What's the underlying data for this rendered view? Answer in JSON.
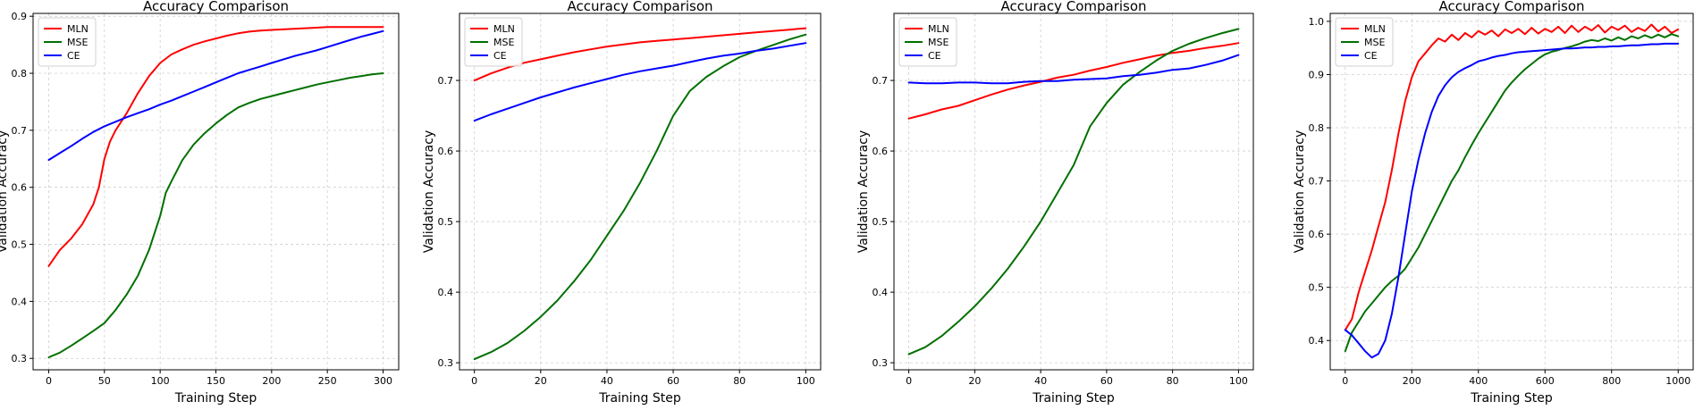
{
  "chart_data": [
    {
      "type": "line",
      "title": "Accuracy Comparison",
      "xlabel": "Training Step",
      "ylabel": "Validation Accuracy",
      "xlim": [
        -14,
        314
      ],
      "ylim": [
        0.28,
        0.905
      ],
      "xticks": [
        0,
        50,
        100,
        150,
        200,
        250,
        300
      ],
      "yticks": [
        0.3,
        0.4,
        0.5,
        0.6,
        0.7,
        0.8,
        0.9
      ],
      "xtick_labels": [
        "0",
        "50",
        "100",
        "150",
        "200",
        "250",
        "300"
      ],
      "ytick_labels": [
        "0.3",
        "0.4",
        "0.5",
        "0.6",
        "0.7",
        "0.8",
        "0.9"
      ],
      "grid": true,
      "legend_position": "top-left",
      "series": [
        {
          "name": "MLN",
          "color": "#ff0000",
          "x": [
            0,
            10,
            20,
            30,
            40,
            45,
            50,
            55,
            60,
            70,
            80,
            90,
            100,
            110,
            120,
            130,
            140,
            150,
            160,
            170,
            180,
            190,
            200,
            210,
            220,
            230,
            240,
            250,
            260,
            270,
            280,
            290,
            300
          ],
          "y": [
            0.462,
            0.49,
            0.51,
            0.535,
            0.57,
            0.6,
            0.65,
            0.68,
            0.7,
            0.73,
            0.765,
            0.795,
            0.818,
            0.833,
            0.842,
            0.85,
            0.856,
            0.861,
            0.866,
            0.87,
            0.873,
            0.875,
            0.876,
            0.877,
            0.878,
            0.879,
            0.88,
            0.881,
            0.881,
            0.881,
            0.881,
            0.881,
            0.881
          ]
        },
        {
          "name": "MSE",
          "color": "#007000",
          "x": [
            0,
            10,
            20,
            30,
            40,
            50,
            60,
            70,
            80,
            90,
            100,
            105,
            110,
            120,
            130,
            140,
            150,
            160,
            170,
            180,
            190,
            200,
            210,
            220,
            230,
            240,
            250,
            260,
            270,
            280,
            290,
            300
          ],
          "y": [
            0.302,
            0.31,
            0.322,
            0.335,
            0.348,
            0.362,
            0.385,
            0.412,
            0.445,
            0.49,
            0.55,
            0.59,
            0.61,
            0.648,
            0.675,
            0.695,
            0.712,
            0.727,
            0.74,
            0.748,
            0.755,
            0.76,
            0.765,
            0.77,
            0.775,
            0.78,
            0.784,
            0.788,
            0.792,
            0.795,
            0.798,
            0.8
          ]
        },
        {
          "name": "CE",
          "color": "#0000ff",
          "x": [
            0,
            10,
            20,
            30,
            40,
            50,
            60,
            70,
            80,
            90,
            100,
            110,
            120,
            130,
            140,
            150,
            160,
            170,
            180,
            190,
            200,
            210,
            220,
            230,
            240,
            250,
            260,
            270,
            280,
            290,
            300
          ],
          "y": [
            0.648,
            0.66,
            0.672,
            0.685,
            0.697,
            0.707,
            0.715,
            0.723,
            0.73,
            0.737,
            0.745,
            0.752,
            0.76,
            0.768,
            0.776,
            0.784,
            0.792,
            0.8,
            0.806,
            0.812,
            0.818,
            0.824,
            0.83,
            0.835,
            0.84,
            0.846,
            0.852,
            0.858,
            0.864,
            0.869,
            0.874
          ]
        }
      ]
    },
    {
      "type": "line",
      "title": "Accuracy Comparison",
      "xlabel": "Training Step",
      "ylabel": "Validation Accuracy",
      "xlim": [
        -4.5,
        104.5
      ],
      "ylim": [
        0.29,
        0.795
      ],
      "xticks": [
        0,
        20,
        40,
        60,
        80,
        100
      ],
      "yticks": [
        0.3,
        0.4,
        0.5,
        0.6,
        0.7
      ],
      "xtick_labels": [
        "0",
        "20",
        "40",
        "60",
        "80",
        "100"
      ],
      "ytick_labels": [
        "0.3",
        "0.4",
        "0.5",
        "0.6",
        "0.7"
      ],
      "grid": true,
      "legend_position": "top-left",
      "series": [
        {
          "name": "MLN",
          "color": "#ff0000",
          "x": [
            0,
            5,
            10,
            15,
            20,
            25,
            30,
            35,
            40,
            45,
            50,
            55,
            60,
            65,
            70,
            75,
            80,
            85,
            90,
            95,
            100
          ],
          "y": [
            0.7,
            0.71,
            0.718,
            0.725,
            0.73,
            0.735,
            0.74,
            0.744,
            0.748,
            0.751,
            0.754,
            0.756,
            0.758,
            0.76,
            0.762,
            0.764,
            0.766,
            0.768,
            0.77,
            0.772,
            0.774
          ]
        },
        {
          "name": "MSE",
          "color": "#007000",
          "x": [
            0,
            5,
            10,
            15,
            20,
            25,
            30,
            35,
            40,
            45,
            50,
            55,
            60,
            65,
            70,
            75,
            80,
            85,
            90,
            95,
            100
          ],
          "y": [
            0.305,
            0.315,
            0.328,
            0.345,
            0.365,
            0.388,
            0.415,
            0.445,
            0.48,
            0.515,
            0.555,
            0.6,
            0.65,
            0.685,
            0.705,
            0.72,
            0.733,
            0.742,
            0.75,
            0.758,
            0.765
          ]
        },
        {
          "name": "CE",
          "color": "#0000ff",
          "x": [
            0,
            5,
            10,
            15,
            20,
            25,
            30,
            35,
            40,
            45,
            50,
            55,
            60,
            65,
            70,
            75,
            80,
            85,
            90,
            95,
            100
          ],
          "y": [
            0.643,
            0.652,
            0.66,
            0.668,
            0.676,
            0.683,
            0.69,
            0.696,
            0.702,
            0.708,
            0.713,
            0.717,
            0.721,
            0.726,
            0.731,
            0.735,
            0.738,
            0.742,
            0.745,
            0.749,
            0.753
          ]
        }
      ]
    },
    {
      "type": "line",
      "title": "Accuracy Comparison",
      "xlabel": "Training Step",
      "ylabel": "Validation Accuracy",
      "xlim": [
        -4.5,
        104.5
      ],
      "ylim": [
        0.29,
        0.795
      ],
      "xticks": [
        0,
        20,
        40,
        60,
        80,
        100
      ],
      "yticks": [
        0.3,
        0.4,
        0.5,
        0.6,
        0.7
      ],
      "xtick_labels": [
        "0",
        "20",
        "40",
        "60",
        "80",
        "100"
      ],
      "ytick_labels": [
        "0.3",
        "0.4",
        "0.5",
        "0.6",
        "0.7"
      ],
      "grid": true,
      "legend_position": "top-left",
      "series": [
        {
          "name": "MLN",
          "color": "#ff0000",
          "x": [
            0,
            5,
            10,
            15,
            20,
            25,
            30,
            35,
            40,
            45,
            50,
            55,
            60,
            65,
            70,
            75,
            80,
            85,
            90,
            95,
            100
          ],
          "y": [
            0.646,
            0.652,
            0.659,
            0.664,
            0.672,
            0.68,
            0.687,
            0.693,
            0.698,
            0.704,
            0.708,
            0.714,
            0.719,
            0.725,
            0.73,
            0.735,
            0.739,
            0.742,
            0.746,
            0.749,
            0.753
          ]
        },
        {
          "name": "MSE",
          "color": "#007000",
          "x": [
            0,
            5,
            10,
            15,
            20,
            25,
            30,
            35,
            40,
            45,
            50,
            55,
            60,
            65,
            70,
            75,
            80,
            85,
            90,
            95,
            100
          ],
          "y": [
            0.312,
            0.322,
            0.338,
            0.358,
            0.38,
            0.405,
            0.433,
            0.465,
            0.5,
            0.54,
            0.58,
            0.635,
            0.668,
            0.694,
            0.712,
            0.728,
            0.742,
            0.752,
            0.76,
            0.767,
            0.773
          ]
        },
        {
          "name": "CE",
          "color": "#0000ff",
          "x": [
            0,
            5,
            10,
            15,
            20,
            25,
            30,
            35,
            40,
            45,
            50,
            55,
            60,
            65,
            70,
            75,
            80,
            85,
            90,
            95,
            100
          ],
          "y": [
            0.697,
            0.696,
            0.696,
            0.697,
            0.697,
            0.696,
            0.696,
            0.698,
            0.699,
            0.699,
            0.701,
            0.702,
            0.703,
            0.706,
            0.708,
            0.711,
            0.715,
            0.717,
            0.722,
            0.728,
            0.736
          ]
        }
      ]
    },
    {
      "type": "line",
      "title": "Accuracy Comparison",
      "xlabel": "Training Step",
      "ylabel": "Validation Accuracy",
      "xlim": [
        -45,
        1045
      ],
      "ylim": [
        0.345,
        1.015
      ],
      "xticks": [
        0,
        200,
        400,
        600,
        800,
        1000
      ],
      "yticks": [
        0.4,
        0.5,
        0.6,
        0.7,
        0.8,
        0.9,
        1.0
      ],
      "xtick_labels": [
        "0",
        "200",
        "400",
        "600",
        "800",
        "1000"
      ],
      "ytick_labels": [
        "0.4",
        "0.5",
        "0.6",
        "0.7",
        "0.8",
        "0.9",
        "1.0"
      ],
      "grid": true,
      "legend_position": "top-left",
      "series": [
        {
          "name": "MLN",
          "color": "#ff0000",
          "x": [
            0,
            20,
            40,
            60,
            80,
            100,
            120,
            140,
            160,
            180,
            200,
            220,
            240,
            260,
            280,
            300,
            320,
            340,
            360,
            380,
            400,
            420,
            440,
            460,
            480,
            500,
            520,
            540,
            560,
            580,
            600,
            620,
            640,
            660,
            680,
            700,
            720,
            740,
            760,
            780,
            800,
            820,
            840,
            860,
            880,
            900,
            920,
            940,
            960,
            980,
            1000
          ],
          "y": [
            0.42,
            0.44,
            0.49,
            0.53,
            0.57,
            0.615,
            0.66,
            0.72,
            0.79,
            0.85,
            0.895,
            0.925,
            0.94,
            0.955,
            0.968,
            0.962,
            0.975,
            0.965,
            0.978,
            0.97,
            0.982,
            0.975,
            0.983,
            0.972,
            0.985,
            0.978,
            0.986,
            0.976,
            0.988,
            0.977,
            0.986,
            0.98,
            0.99,
            0.978,
            0.992,
            0.98,
            0.99,
            0.983,
            0.993,
            0.979,
            0.99,
            0.984,
            0.992,
            0.98,
            0.988,
            0.982,
            0.994,
            0.981,
            0.99,
            0.978,
            0.985
          ]
        },
        {
          "name": "MSE",
          "color": "#007000",
          "x": [
            0,
            20,
            40,
            60,
            80,
            100,
            120,
            140,
            160,
            180,
            200,
            220,
            240,
            260,
            280,
            300,
            320,
            340,
            360,
            380,
            400,
            420,
            440,
            460,
            480,
            500,
            520,
            540,
            560,
            580,
            600,
            620,
            640,
            660,
            680,
            700,
            720,
            740,
            760,
            780,
            800,
            820,
            840,
            860,
            880,
            900,
            920,
            940,
            960,
            980,
            1000
          ],
          "y": [
            0.38,
            0.415,
            0.435,
            0.455,
            0.47,
            0.485,
            0.5,
            0.512,
            0.522,
            0.535,
            0.555,
            0.575,
            0.6,
            0.625,
            0.65,
            0.675,
            0.7,
            0.72,
            0.745,
            0.768,
            0.79,
            0.81,
            0.83,
            0.85,
            0.87,
            0.885,
            0.898,
            0.91,
            0.92,
            0.93,
            0.938,
            0.943,
            0.946,
            0.95,
            0.953,
            0.957,
            0.962,
            0.965,
            0.963,
            0.968,
            0.964,
            0.97,
            0.965,
            0.972,
            0.968,
            0.974,
            0.969,
            0.975,
            0.97,
            0.976,
            0.972
          ]
        },
        {
          "name": "CE",
          "color": "#0000ff",
          "x": [
            0,
            20,
            40,
            60,
            80,
            100,
            120,
            140,
            160,
            180,
            200,
            220,
            240,
            260,
            280,
            300,
            320,
            340,
            360,
            380,
            400,
            420,
            440,
            460,
            480,
            500,
            520,
            540,
            560,
            580,
            600,
            620,
            640,
            660,
            680,
            700,
            720,
            740,
            760,
            780,
            800,
            820,
            840,
            860,
            880,
            900,
            920,
            940,
            960,
            980,
            1000
          ],
          "y": [
            0.42,
            0.41,
            0.395,
            0.38,
            0.368,
            0.375,
            0.4,
            0.45,
            0.52,
            0.6,
            0.68,
            0.74,
            0.79,
            0.83,
            0.86,
            0.88,
            0.895,
            0.905,
            0.912,
            0.918,
            0.925,
            0.928,
            0.932,
            0.935,
            0.937,
            0.94,
            0.942,
            0.943,
            0.944,
            0.945,
            0.946,
            0.947,
            0.948,
            0.949,
            0.949,
            0.95,
            0.951,
            0.951,
            0.952,
            0.952,
            0.953,
            0.953,
            0.954,
            0.955,
            0.955,
            0.956,
            0.957,
            0.957,
            0.958,
            0.958,
            0.958
          ]
        }
      ]
    }
  ]
}
